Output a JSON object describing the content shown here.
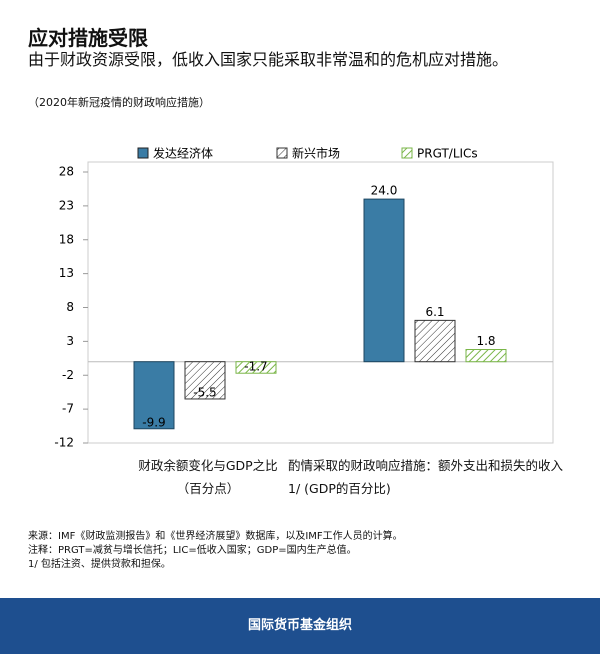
{
  "chart_data": {
    "type": "bar",
    "title": "应对措施受限",
    "subtitle": "由于财政资源受限，低收入国家只能采取非常温和的危机应对措施。",
    "note": "（2020年新冠疫情的财政响应措施）",
    "categories": [
      "财政余额变化与GDP之比（百分点）",
      "酌情采取的财政响应措施：额外支出和损失的收入1/ (GDP的百分比)"
    ],
    "series": [
      {
        "name": "发达经济体",
        "color": "#3a7ca5",
        "pattern": "solid",
        "values": [
          -9.9,
          24.0
        ],
        "value_labels": [
          "-9.9",
          "24.0"
        ]
      },
      {
        "name": "新兴市场",
        "color": "#333333",
        "pattern": "hatch",
        "values": [
          -5.5,
          6.1
        ],
        "value_labels": [
          "-5.5",
          "6.1"
        ]
      },
      {
        "name": "PRGT/LICs",
        "color": "#7ab648",
        "pattern": "hatch-light",
        "values": [
          -1.7,
          1.8
        ],
        "value_labels": [
          "-1.7",
          "1.8"
        ]
      }
    ],
    "ylim": [
      -12,
      28
    ],
    "yticks": [
      28,
      23,
      18,
      13,
      8,
      3,
      -2,
      -7,
      -12
    ],
    "grid": false,
    "sources": [
      "来源：IMF《财政监测报告》和《世界经济展望》数据库，以及IMF工作人员的计算。",
      "注释：PRGT=减贫与增长信托；LIC=低收入国家；GDP=国内生产总值。",
      "1/ 包括注资、提供贷款和担保。"
    ],
    "footer": "国际货币基金组织"
  }
}
